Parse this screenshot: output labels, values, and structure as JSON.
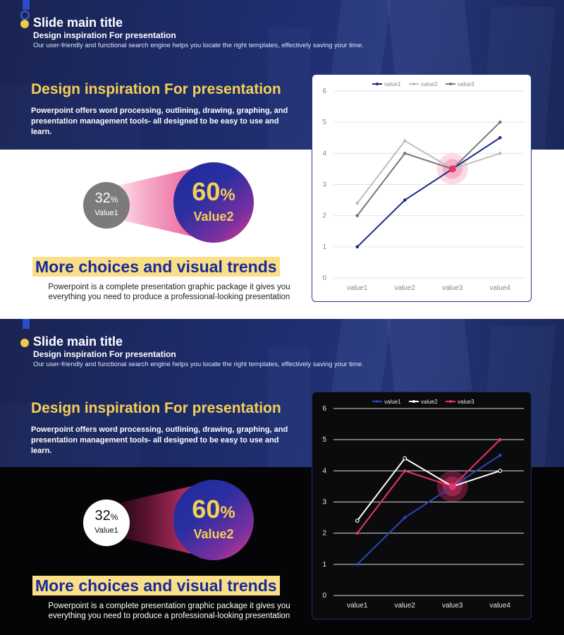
{
  "slides": [
    {
      "theme": "light",
      "header": {
        "main_title": "Slide main title",
        "subtitle": "Design inspiration For presentation",
        "description": "Our user-friendly and functional search engine helps you locate the right templates, effectively saving your time."
      },
      "design": {
        "heading": "Design inspiration For presentation",
        "description": "Powerpoint offers word processing, outlining, drawing, graphing, and presentation management tools- all designed to be easy to use and learn."
      },
      "stats": {
        "small_value": "32",
        "small_unit": "%",
        "small_label": "Value1",
        "big_value": "60",
        "big_unit": "%",
        "big_label": "Value2"
      },
      "trends": {
        "heading": "More choices and visual trends",
        "description": "Powerpoint is a complete presentation graphic package it gives you everything you need to produce a professional-looking presentation"
      },
      "colors": {
        "series": [
          "#1a2a8a",
          "#bdbdbd",
          "#777777"
        ],
        "highlight": "#e8336f",
        "accent": "#f4cf58"
      }
    },
    {
      "theme": "dark",
      "header": {
        "main_title": "Slide main title",
        "subtitle": "Design inspiration For presentation",
        "description": "Our user-friendly and functional search engine helps you locate the right templates, effectively saving your time."
      },
      "design": {
        "heading": "Design inspiration For presentation",
        "description": "Powerpoint offers word processing, outlining, drawing, graphing, and presentation management tools- all designed to be easy to use and learn."
      },
      "stats": {
        "small_value": "32",
        "small_unit": "%",
        "small_label": "Value1",
        "big_value": "60",
        "big_unit": "%",
        "big_label": "Value2"
      },
      "trends": {
        "heading": "More choices and visual trends",
        "description": "Powerpoint is a complete presentation graphic package it gives you everything you need to produce a professional-looking presentation"
      },
      "colors": {
        "series": [
          "#2a45b8",
          "#ffffff",
          "#e8336f"
        ],
        "highlight": "#e8336f",
        "accent": "#f4cf58"
      }
    }
  ],
  "chart_data": [
    {
      "type": "line",
      "categories": [
        "value1",
        "value2",
        "value3",
        "value4"
      ],
      "series": [
        {
          "name": "value1",
          "values": [
            1,
            2.5,
            3.5,
            4.5
          ]
        },
        {
          "name": "value2",
          "values": [
            2.4,
            4.4,
            3.5,
            4
          ]
        },
        {
          "name": "value3",
          "values": [
            2,
            4,
            3.5,
            5
          ]
        }
      ],
      "ylim": [
        0,
        6
      ],
      "yticks": [
        0,
        1,
        2,
        3,
        4,
        5,
        6
      ],
      "grid": true,
      "legend": "top",
      "highlight": {
        "category": "value3",
        "value": 3.5
      }
    },
    {
      "type": "line",
      "categories": [
        "value1",
        "value2",
        "value3",
        "value4"
      ],
      "series": [
        {
          "name": "value1",
          "values": [
            1,
            2.5,
            3.5,
            4.5
          ]
        },
        {
          "name": "value2",
          "values": [
            2.4,
            4.4,
            3.5,
            4
          ]
        },
        {
          "name": "value3",
          "values": [
            2,
            4,
            3.5,
            5
          ]
        }
      ],
      "ylim": [
        0,
        6
      ],
      "yticks": [
        0,
        1,
        2,
        3,
        4,
        5,
        6
      ],
      "grid": true,
      "legend": "top",
      "highlight": {
        "category": "value3",
        "value": 3.5
      }
    }
  ]
}
